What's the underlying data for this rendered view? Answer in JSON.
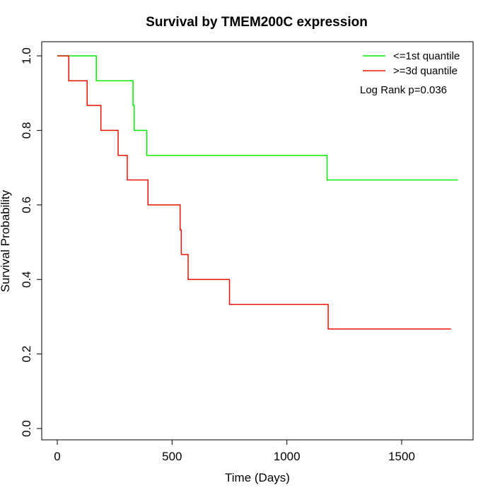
{
  "chart_data": {
    "type": "line",
    "subtype": "kaplan-meier-step",
    "title": "Survival by TMEM200C expression",
    "xlabel": "Time (Days)",
    "ylabel": "Survival Probability",
    "xlim": [
      0,
      1800
    ],
    "ylim": [
      0,
      1.0
    ],
    "x_ticks": [
      0,
      500,
      1000,
      1500
    ],
    "y_ticks": [
      0.0,
      0.2,
      0.4,
      0.6,
      0.8,
      1.0
    ],
    "x_tick_labels": [
      "0",
      "500",
      "1000",
      "1500"
    ],
    "y_tick_labels": [
      "0.0",
      "0.2",
      "0.4",
      "0.6",
      "0.8",
      "1.0"
    ],
    "grid": false,
    "legend_position": "top-right",
    "annotation": "Log Rank p=0.036",
    "series": [
      {
        "name": "<=1st quantile",
        "color": "#00ee00",
        "steps": [
          {
            "x": 0,
            "y": 1.0
          },
          {
            "x": 170,
            "y": 0.933
          },
          {
            "x": 330,
            "y": 0.867
          },
          {
            "x": 335,
            "y": 0.8
          },
          {
            "x": 390,
            "y": 0.733
          },
          {
            "x": 1175,
            "y": 0.667
          }
        ],
        "x_end": 1745
      },
      {
        "name": ">=3d quantile",
        "color": "#ee1100",
        "steps": [
          {
            "x": 0,
            "y": 1.0
          },
          {
            "x": 50,
            "y": 0.933
          },
          {
            "x": 130,
            "y": 0.867
          },
          {
            "x": 190,
            "y": 0.8
          },
          {
            "x": 265,
            "y": 0.733
          },
          {
            "x": 305,
            "y": 0.667
          },
          {
            "x": 395,
            "y": 0.6
          },
          {
            "x": 535,
            "y": 0.533
          },
          {
            "x": 540,
            "y": 0.467
          },
          {
            "x": 570,
            "y": 0.4
          },
          {
            "x": 750,
            "y": 0.333
          },
          {
            "x": 1180,
            "y": 0.267
          }
        ],
        "x_end": 1715
      }
    ]
  }
}
